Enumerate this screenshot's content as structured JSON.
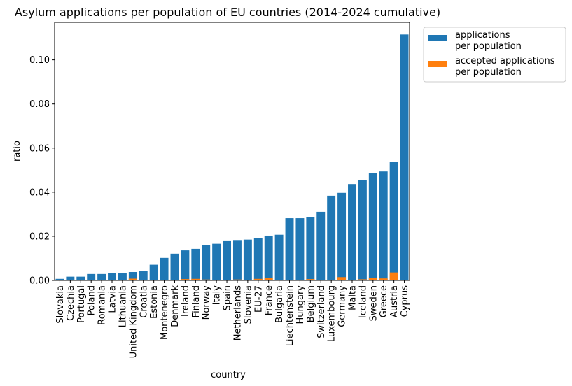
{
  "chart_data": {
    "type": "bar",
    "title": "Asylum applications per population of EU countries (2014-2024 cumulative)",
    "xlabel": "country",
    "ylabel": "ratio",
    "ylim": [
      0,
      0.117
    ],
    "yticks": [
      0.0,
      0.02,
      0.04,
      0.06,
      0.08,
      0.1
    ],
    "ytick_labels": [
      "0.00",
      "0.02",
      "0.04",
      "0.06",
      "0.08",
      "0.10"
    ],
    "grid": false,
    "legend_position": "outside top-right",
    "categories": [
      "Slovakia",
      "Czechia",
      "Portugal",
      "Poland",
      "Romania",
      "Latvia",
      "Lithuania",
      "United Kingdom",
      "Croatia",
      "Estonia",
      "Montenegro",
      "Denmark",
      "Ireland",
      "Finland",
      "Norway",
      "Italy",
      "Spain",
      "Netherlands",
      "Slovenia",
      "EU-27",
      "France",
      "Bulgaria",
      "Liechtenstein",
      "Hungary",
      "Belgium",
      "Switzerland",
      "Luxembourg",
      "Germany",
      "Malta",
      "Iceland",
      "Sweden",
      "Greece",
      "Austria",
      "Cyprus"
    ],
    "series": [
      {
        "name": "applications\nper population",
        "color": "#1f77b4",
        "values": [
          0.0007,
          0.0017,
          0.0017,
          0.0029,
          0.0029,
          0.0032,
          0.0032,
          0.0038,
          0.0043,
          0.0071,
          0.0102,
          0.0121,
          0.0136,
          0.0143,
          0.016,
          0.0166,
          0.0181,
          0.0183,
          0.0185,
          0.0193,
          0.0203,
          0.0207,
          0.0282,
          0.0282,
          0.0286,
          0.0311,
          0.0384,
          0.0397,
          0.0437,
          0.0456,
          0.0488,
          0.0494,
          0.0538,
          0.1115
        ]
      },
      {
        "name": "accepted applications\nper population",
        "color": "#ff7f0e",
        "values": [
          0.0001,
          0.0002,
          0.0002,
          0.0002,
          0.0003,
          0.0002,
          0.0003,
          0.0008,
          0.0002,
          0.0002,
          0.0001,
          0.0003,
          0.0006,
          0.0007,
          0.0004,
          0.0003,
          0.0003,
          0.0004,
          0.0002,
          0.0007,
          0.0012,
          0.0002,
          0.0002,
          0.0001,
          0.0006,
          0.0003,
          0.0003,
          0.0015,
          0.0003,
          0.0005,
          0.001,
          0.0009,
          0.0036,
          0.0002
        ]
      }
    ]
  }
}
